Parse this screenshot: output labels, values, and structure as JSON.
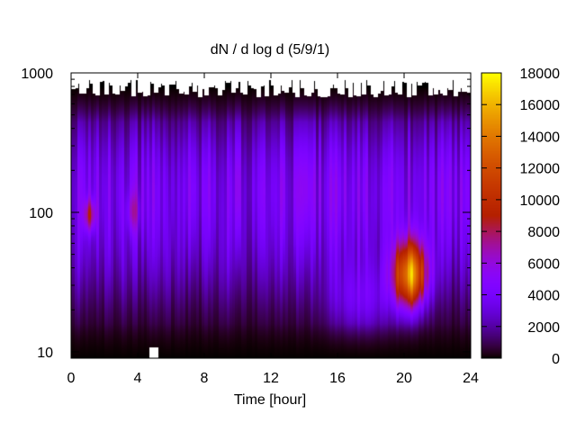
{
  "chart_data": {
    "type": "heatmap",
    "title": "dN / d log d (5/9/1)",
    "xlabel": "Time [hour]",
    "ylabel": "",
    "x_ticks": [
      "0",
      "4",
      "8",
      "12",
      "16",
      "20",
      "24"
    ],
    "y_ticks": [
      "10",
      "100",
      "1000"
    ],
    "y_scale": "log",
    "xlim": [
      0,
      24
    ],
    "ylim": [
      9,
      1000
    ],
    "colorbar": {
      "ticks": [
        "0",
        "2000",
        "4000",
        "6000",
        "8000",
        "10000",
        "12000",
        "14000",
        "16000",
        "18000"
      ],
      "range": [
        0,
        18000
      ],
      "palette": "gnuplot default (black-purple-red-orange-yellow)"
    },
    "missing_data_color": "#ffffff",
    "features": [
      {
        "x_range": [
          19.3,
          22.0
        ],
        "y_range": [
          18,
          70
        ],
        "peak": 13500,
        "note": "strong peak"
      },
      {
        "x_range": [
          0.8,
          1.4
        ],
        "y_range": [
          75,
          130
        ],
        "peak": 8500
      },
      {
        "x_range": [
          3.5,
          4.0
        ],
        "y_range": [
          80,
          120
        ],
        "peak": 6000
      },
      {
        "x_range": [
          15.0,
          19.0
        ],
        "y_range": [
          15,
          40
        ],
        "peak": 5000
      },
      {
        "x_range": [
          0,
          24
        ],
        "y_range": [
          150,
          400
        ],
        "peak": 4500,
        "note": "broad background band"
      },
      {
        "x_range": [
          0,
          24
        ],
        "y_range": [
          500,
          1000
        ],
        "peak": 0,
        "note": "near-zero, top white gaps = no data"
      }
    ]
  }
}
